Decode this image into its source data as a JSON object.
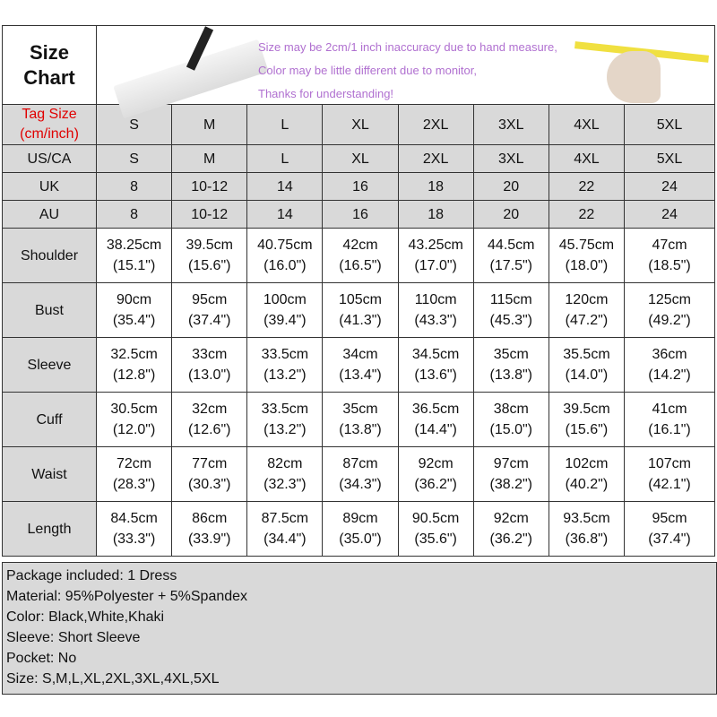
{
  "title": "Size\nChart",
  "title_lines": [
    "Size",
    "Chart"
  ],
  "notes": [
    "Size may be 2cm/1 inch inaccuracy due to hand measure,",
    "Color may be little different due to monitor,",
    "Thanks for understanding!"
  ],
  "tag_size_label": [
    "Tag Size",
    "(cm/inch)"
  ],
  "sizes": [
    "S",
    "M",
    "L",
    "XL",
    "2XL",
    "3XL",
    "4XL",
    "5XL"
  ],
  "size_rows": [
    {
      "label": "US/CA",
      "values": [
        "S",
        "M",
        "L",
        "XL",
        "2XL",
        "3XL",
        "4XL",
        "5XL"
      ]
    },
    {
      "label": "UK",
      "values": [
        "8",
        "10-12",
        "14",
        "16",
        "18",
        "20",
        "22",
        "24"
      ]
    },
    {
      "label": "AU",
      "values": [
        "8",
        "10-12",
        "14",
        "16",
        "18",
        "20",
        "22",
        "24"
      ]
    }
  ],
  "measurements": [
    {
      "label": "Shoulder",
      "cm": [
        "38.25cm",
        "39.5cm",
        "40.75cm",
        "42cm",
        "43.25cm",
        "44.5cm",
        "45.75cm",
        "47cm"
      ],
      "inch": [
        "(15.1\")",
        "(15.6\")",
        "(16.0\")",
        "(16.5\")",
        "(17.0\")",
        "(17.5\")",
        "(18.0\")",
        "(18.5\")"
      ]
    },
    {
      "label": "Bust",
      "cm": [
        "90cm",
        "95cm",
        "100cm",
        "105cm",
        "110cm",
        "115cm",
        "120cm",
        "125cm"
      ],
      "inch": [
        "(35.4\")",
        "(37.4\")",
        "(39.4\")",
        "(41.3\")",
        "(43.3\")",
        "(45.3\")",
        "(47.2\")",
        "(49.2\")"
      ]
    },
    {
      "label": "Sleeve",
      "cm": [
        "32.5cm",
        "33cm",
        "33.5cm",
        "34cm",
        "34.5cm",
        "35cm",
        "35.5cm",
        "36cm"
      ],
      "inch": [
        "(12.8\")",
        "(13.0\")",
        "(13.2\")",
        "(13.4\")",
        "(13.6\")",
        "(13.8\")",
        "(14.0\")",
        "(14.2\")"
      ]
    },
    {
      "label": "Cuff",
      "cm": [
        "30.5cm",
        "32cm",
        "33.5cm",
        "35cm",
        "36.5cm",
        "38cm",
        "39.5cm",
        "41cm"
      ],
      "inch": [
        "(12.0\")",
        "(12.6\")",
        "(13.2\")",
        "(13.8\")",
        "(14.4\")",
        "(15.0\")",
        "(15.6\")",
        "(16.1\")"
      ]
    },
    {
      "label": "Waist",
      "cm": [
        "72cm",
        "77cm",
        "82cm",
        "87cm",
        "92cm",
        "97cm",
        "102cm",
        "107cm"
      ],
      "inch": [
        "(28.3\")",
        "(30.3\")",
        "(32.3\")",
        "(34.3\")",
        "(36.2\")",
        "(38.2\")",
        "(40.2\")",
        "(42.1\")"
      ]
    },
    {
      "label": "Length",
      "cm": [
        "84.5cm",
        "86cm",
        "87.5cm",
        "89cm",
        "90.5cm",
        "92cm",
        "93.5cm",
        "95cm"
      ],
      "inch": [
        "(33.3\")",
        "(33.9\")",
        "(34.4\")",
        "(35.0\")",
        "(35.6\")",
        "(36.2\")",
        "(36.8\")",
        "(37.4\")"
      ]
    }
  ],
  "details": [
    "Package included: 1 Dress",
    "Material: 95%Polyester + 5%Spandex",
    "Color: Black,White,Khaki",
    "Sleeve: Short Sleeve",
    "Pocket: No",
    "Size: S,M,L,XL,2XL,3XL,4XL,5XL"
  ],
  "colors": {
    "tag_label": "#e00000",
    "notes": "#b070d0",
    "grey_cells": "#d9d9d9"
  }
}
